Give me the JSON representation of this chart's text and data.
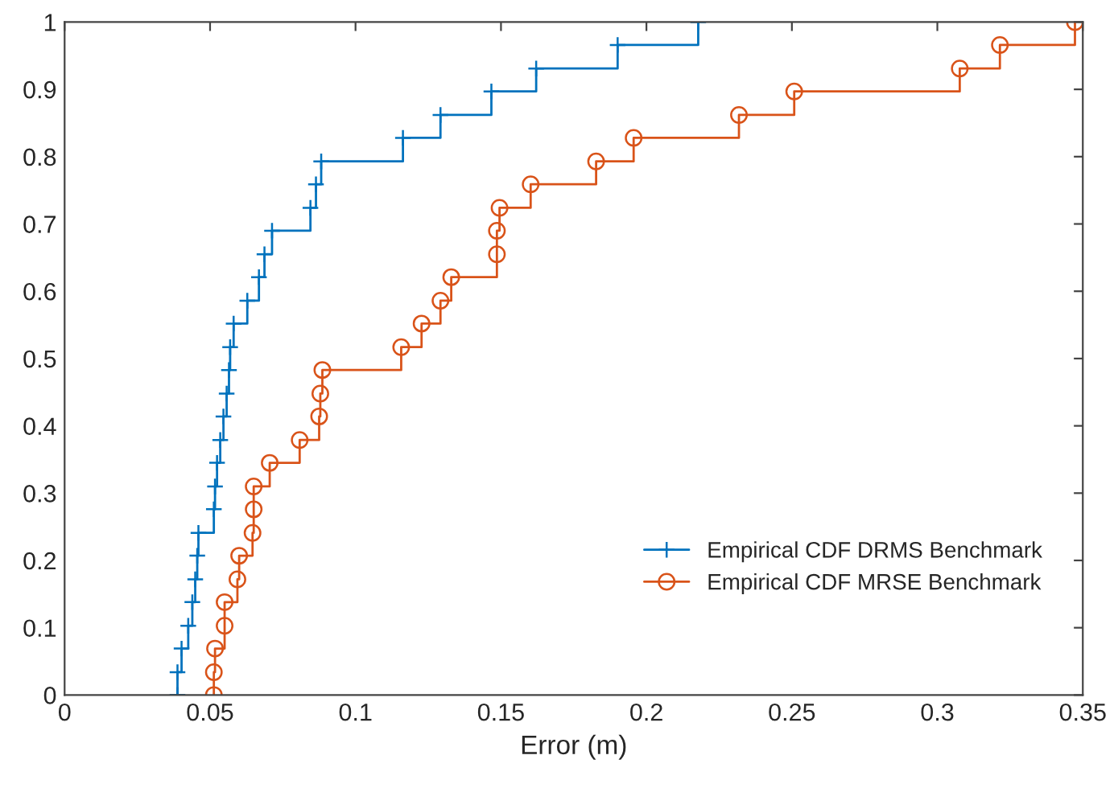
{
  "chart_data": {
    "type": "step",
    "xlabel": "Error (m)",
    "xlim": [
      0,
      0.35
    ],
    "xticks": [
      0,
      0.05,
      0.1,
      0.15,
      0.2,
      0.25,
      0.3,
      0.35
    ],
    "ylim": [
      0,
      1
    ],
    "yticks": [
      0,
      0.1,
      0.2,
      0.3,
      0.4,
      0.5,
      0.6,
      0.7,
      0.8,
      0.9,
      1
    ],
    "grid": false,
    "legend": "bottom right",
    "series": [
      {
        "name": "Empirical CDF DRMS Benchmark",
        "color": "#0072bd",
        "marker": "cross",
        "x": [
          0.0388,
          0.0388,
          0.0402,
          0.0425,
          0.0439,
          0.0449,
          0.0456,
          0.046,
          0.0513,
          0.0517,
          0.0524,
          0.0535,
          0.0546,
          0.0557,
          0.0565,
          0.0569,
          0.0581,
          0.0628,
          0.0668,
          0.0687,
          0.0713,
          0.0845,
          0.0864,
          0.0882,
          0.1163,
          0.1292,
          0.1467,
          0.1621,
          0.1901,
          0.2178
        ],
        "values": [
          0,
          0.034,
          0.069,
          0.103,
          0.138,
          0.172,
          0.207,
          0.241,
          0.276,
          0.31,
          0.345,
          0.379,
          0.414,
          0.448,
          0.483,
          0.517,
          0.552,
          0.586,
          0.621,
          0.655,
          0.69,
          0.724,
          0.759,
          0.793,
          0.828,
          0.862,
          0.897,
          0.931,
          0.966,
          1
        ]
      },
      {
        "name": "Empirical CDF MRSE Benchmark",
        "color": "#d95319",
        "marker": "circle",
        "x": [
          0.0513,
          0.0513,
          0.0517,
          0.055,
          0.055,
          0.0594,
          0.06,
          0.0646,
          0.065,
          0.065,
          0.0705,
          0.0808,
          0.0875,
          0.0879,
          0.0886,
          0.1157,
          0.1227,
          0.1292,
          0.1329,
          0.1486,
          0.1486,
          0.1495,
          0.1602,
          0.1827,
          0.1956,
          0.2318,
          0.2508,
          0.3077,
          0.3215,
          0.3473
        ],
        "values": [
          0,
          0.034,
          0.069,
          0.103,
          0.138,
          0.172,
          0.207,
          0.241,
          0.276,
          0.31,
          0.345,
          0.379,
          0.414,
          0.448,
          0.483,
          0.517,
          0.552,
          0.586,
          0.621,
          0.655,
          0.69,
          0.724,
          0.759,
          0.793,
          0.828,
          0.862,
          0.897,
          0.931,
          0.966,
          1
        ]
      }
    ]
  }
}
